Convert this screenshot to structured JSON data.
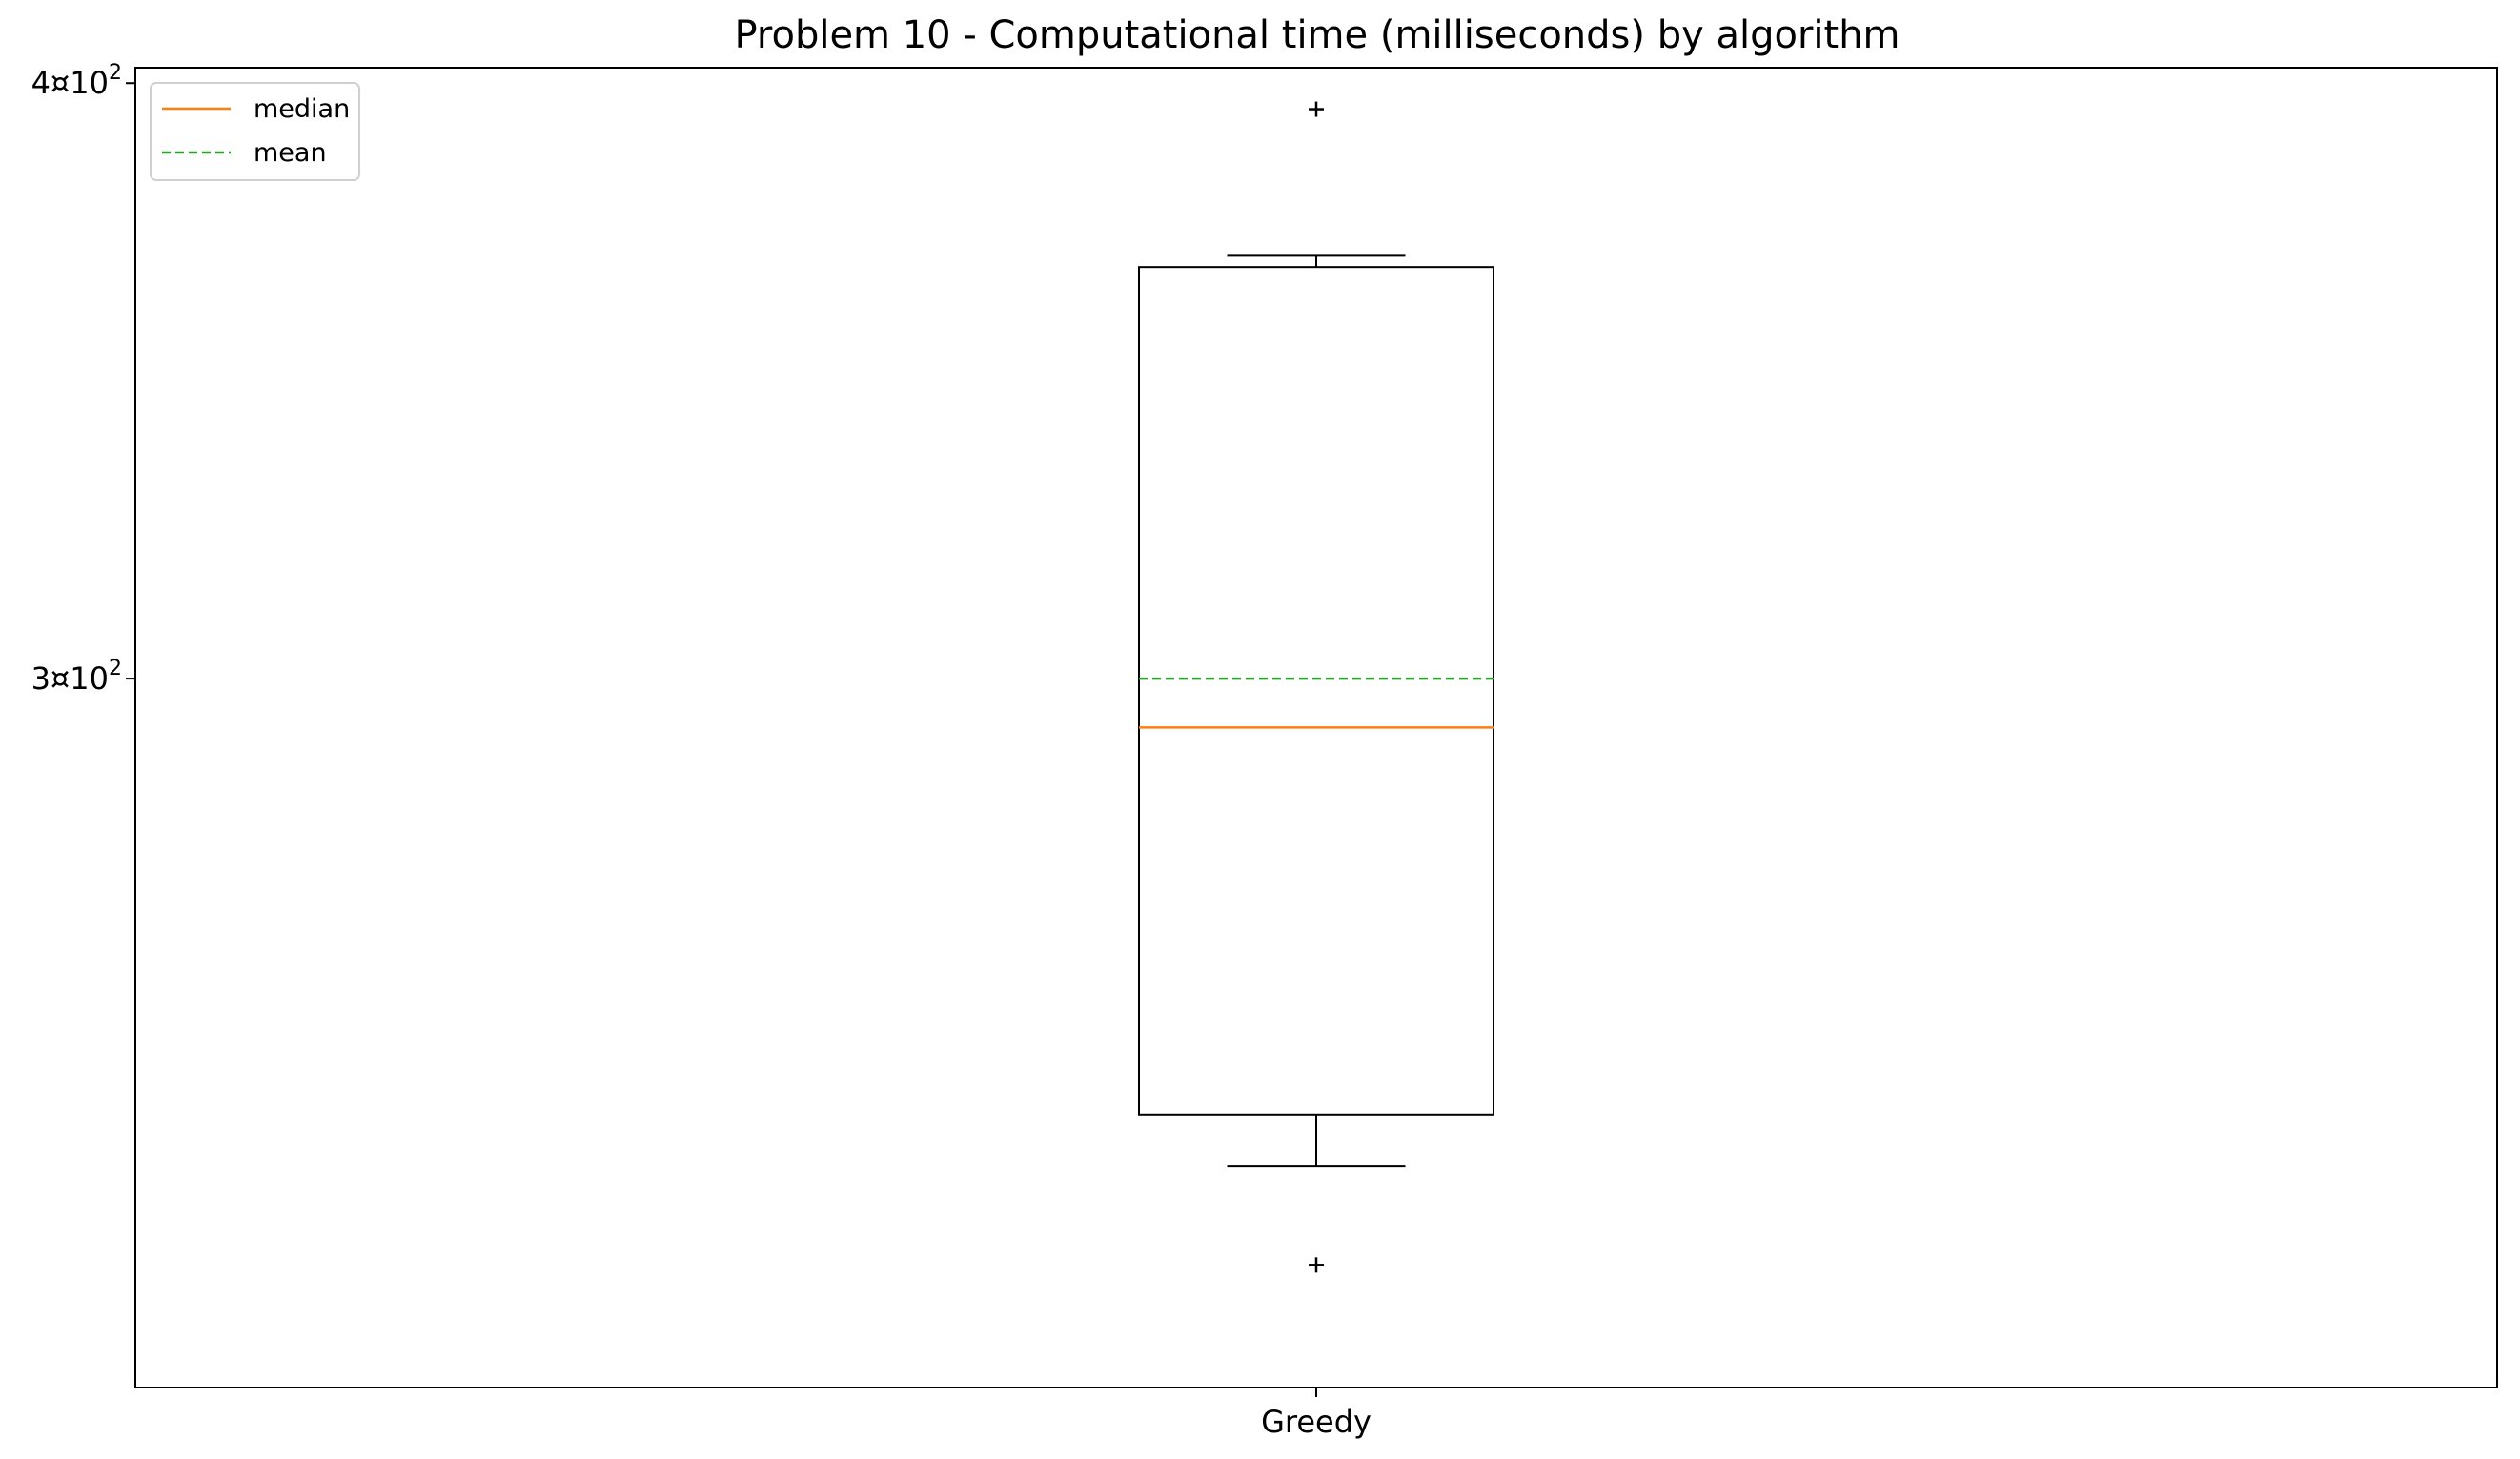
{
  "chart_data": {
    "type": "box",
    "title": "Problem 10 - Computational time (milliseconds) by algorithm",
    "xlabel": "",
    "ylabel": "",
    "yscale": "log",
    "ylim": [
      213,
      403
    ],
    "yticks": [
      {
        "value": 300,
        "label": "3¤10",
        "exp": "2"
      },
      {
        "value": 400,
        "label": "4¤10",
        "exp": "2"
      }
    ],
    "grid": false,
    "legend": {
      "placement": "top-left",
      "entries": [
        {
          "label": "median",
          "color": "#ff7f0e",
          "style": "solid"
        },
        {
          "label": "mean",
          "color": "#2ca02c",
          "style": "dashed"
        }
      ]
    },
    "boxes": [
      {
        "category": "Greedy",
        "whisker_low": 237,
        "q1": 243,
        "median": 293,
        "mean": 300,
        "q3": 366,
        "whisker_high": 368,
        "outliers": [
          226,
          395
        ]
      }
    ],
    "colors": {
      "box": "#000000",
      "median": "#ff7f0e",
      "mean": "#2ca02c"
    }
  }
}
